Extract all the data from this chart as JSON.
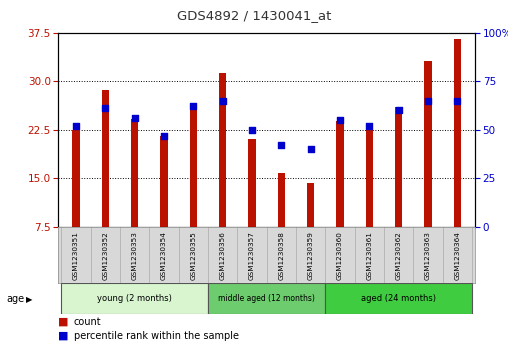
{
  "title": "GDS4892 / 1430041_at",
  "samples": [
    "GSM1230351",
    "GSM1230352",
    "GSM1230353",
    "GSM1230354",
    "GSM1230355",
    "GSM1230356",
    "GSM1230357",
    "GSM1230358",
    "GSM1230359",
    "GSM1230360",
    "GSM1230361",
    "GSM1230362",
    "GSM1230363",
    "GSM1230364"
  ],
  "counts": [
    22.5,
    28.7,
    24.2,
    21.5,
    25.8,
    31.2,
    21.0,
    15.8,
    14.3,
    23.8,
    22.5,
    26.0,
    33.2,
    36.5
  ],
  "percentiles": [
    52,
    61,
    56,
    47,
    62,
    65,
    50,
    42,
    40,
    55,
    52,
    60,
    65,
    65
  ],
  "ylim_left": [
    7.5,
    37.5
  ],
  "ylim_right": [
    0,
    100
  ],
  "yticks_left": [
    7.5,
    15,
    22.5,
    30,
    37.5
  ],
  "yticks_right": [
    0,
    25,
    50,
    75,
    100
  ],
  "bar_color": "#bb1100",
  "dot_color": "#0000cc",
  "groups": [
    {
      "label": "young (2 months)",
      "start": 0,
      "end": 5
    },
    {
      "label": "middle aged (12 months)",
      "start": 5,
      "end": 9
    },
    {
      "label": "aged (24 months)",
      "start": 9,
      "end": 14
    }
  ],
  "group_colors": [
    "#d8f5d0",
    "#6dcc6d",
    "#40cc40"
  ],
  "age_label": "age",
  "legend_count": "count",
  "legend_percentile": "percentile rank within the sample",
  "plot_bg": "#ffffff"
}
